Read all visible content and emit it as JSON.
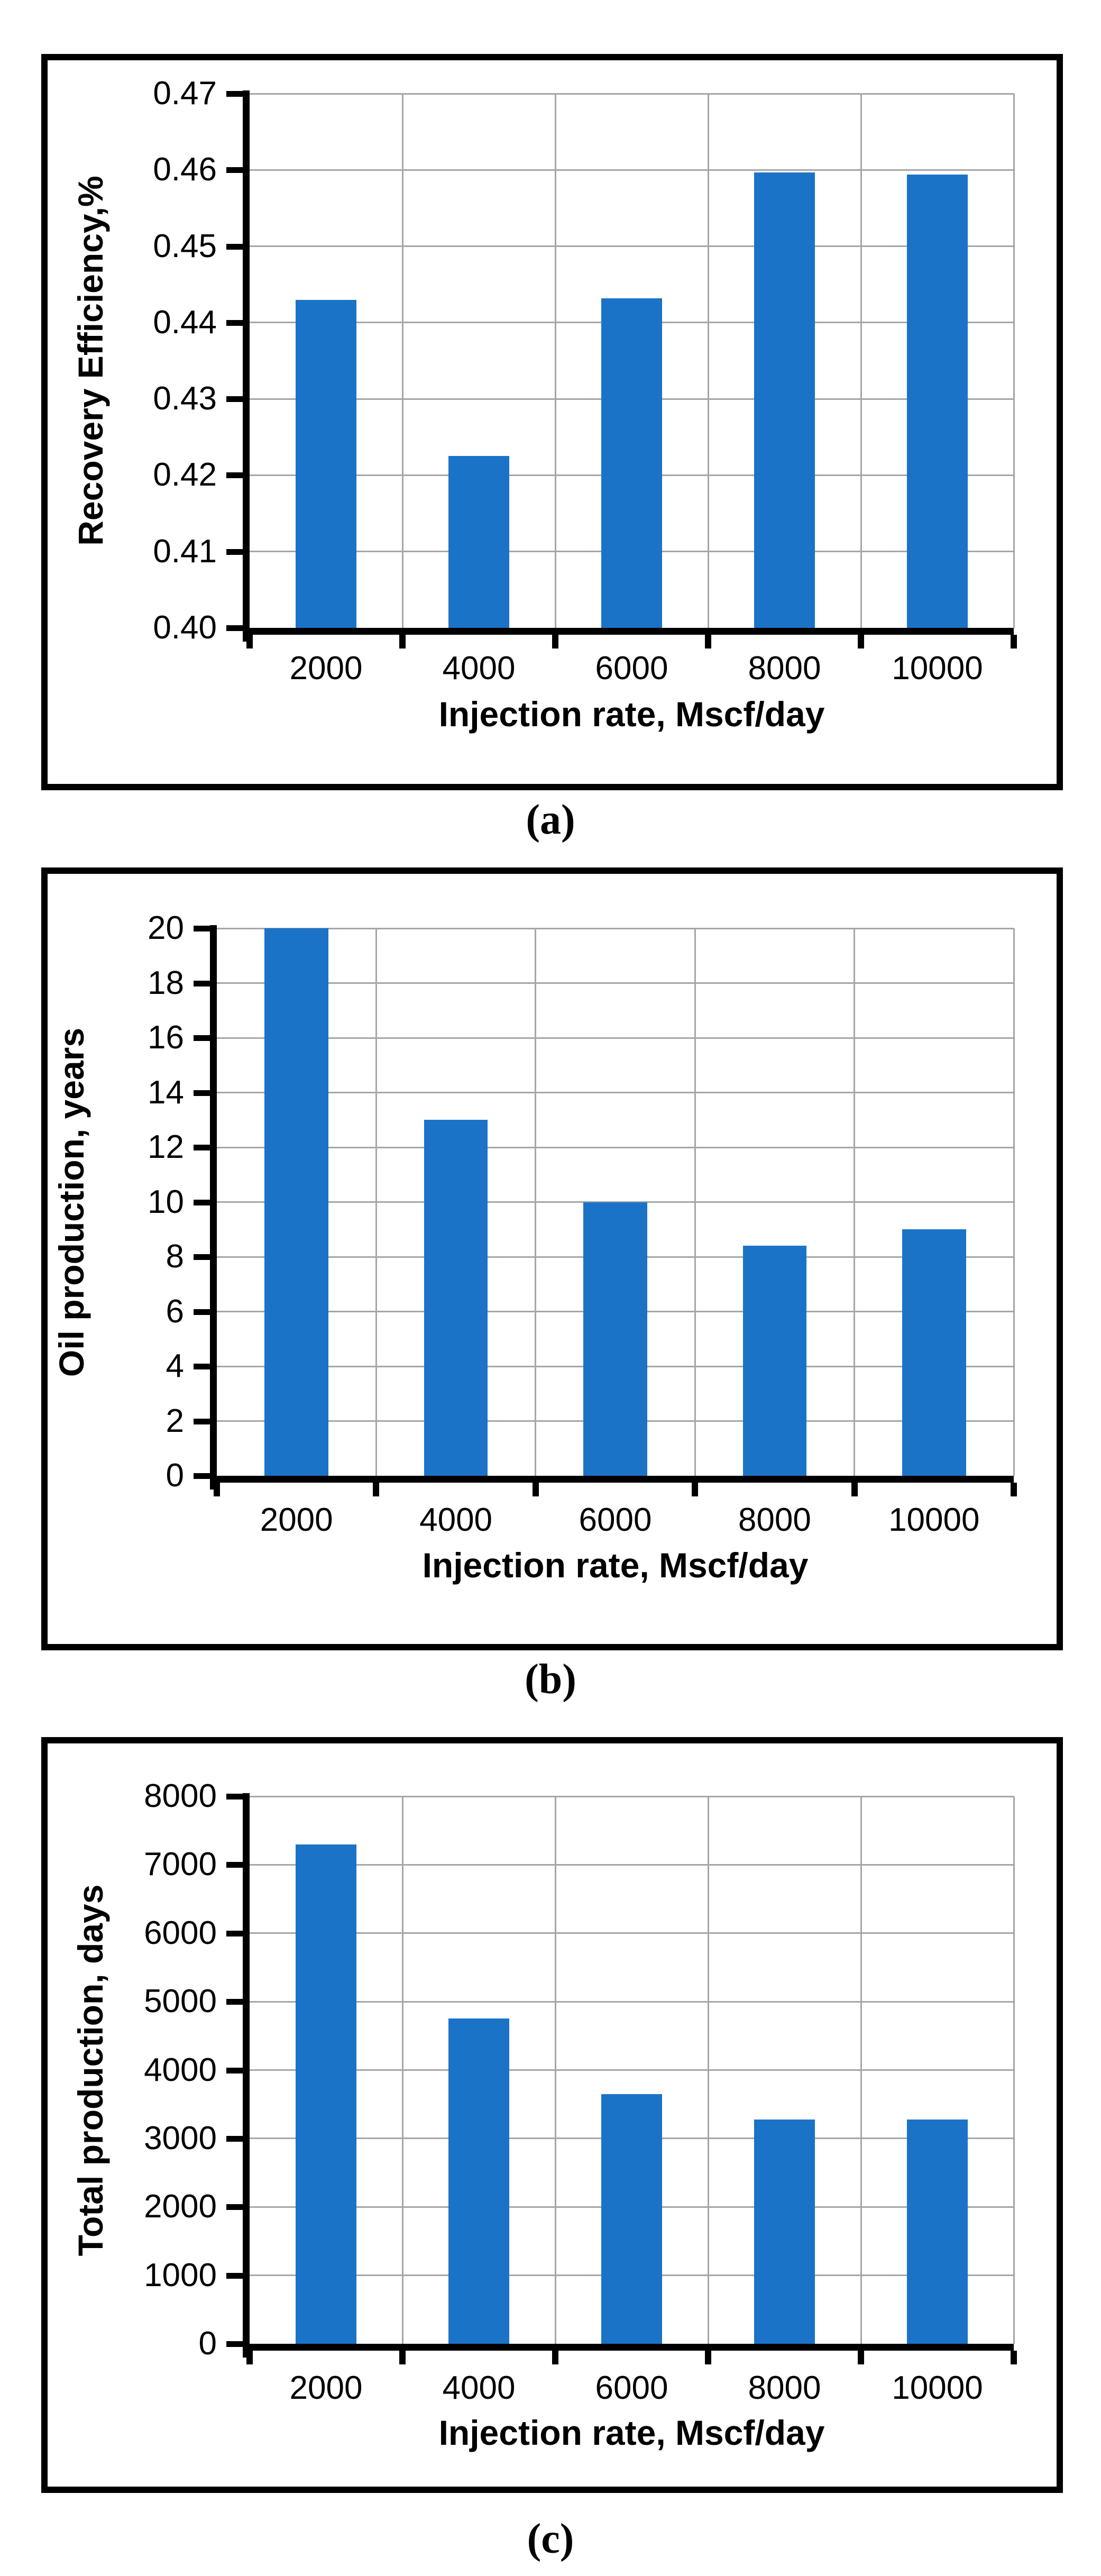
{
  "page": {
    "background": "#FFFFFF"
  },
  "styles": {
    "bar_color": "#1B73C8",
    "grid_color": "#A6A6A6",
    "axis_color": "#000000",
    "border_color": "#000000"
  },
  "captions": [
    "(a)",
    "(b)",
    "(c)"
  ],
  "chart_data": [
    {
      "type": "bar",
      "title": "",
      "categories": [
        "2000",
        "4000",
        "6000",
        "8000",
        "10000"
      ],
      "values": [
        0.443,
        0.4225,
        0.4432,
        0.4597,
        0.4594
      ],
      "xlabel": "Injection rate, Mscf/day",
      "ylabel": "Recovery Efficiency,%",
      "ylim": [
        0.4,
        0.47
      ],
      "ytick_values": [
        0.4,
        0.41,
        0.42,
        0.43,
        0.44,
        0.45,
        0.46,
        0.47
      ],
      "ytick_labels": [
        "0.40",
        "0.41",
        "0.42",
        "0.43",
        "0.44",
        "0.45",
        "0.46",
        "0.47"
      ],
      "grid": true,
      "legend": "none",
      "caption": "(a)"
    },
    {
      "type": "bar",
      "title": "",
      "categories": [
        "2000",
        "4000",
        "6000",
        "8000",
        "10000"
      ],
      "values": [
        20,
        13,
        10,
        8.4,
        9
      ],
      "xlabel": "Injection rate, Mscf/day",
      "ylabel": "Oil production, years",
      "ylim": [
        0,
        20
      ],
      "ytick_values": [
        0,
        2,
        4,
        6,
        8,
        10,
        12,
        14,
        16,
        18,
        20
      ],
      "ytick_labels": [
        "0",
        "2",
        "4",
        "6",
        "8",
        "10",
        "12",
        "14",
        "16",
        "18",
        "20"
      ],
      "grid": true,
      "legend": "none",
      "caption": "(b)"
    },
    {
      "type": "bar",
      "title": "",
      "categories": [
        "2000",
        "4000",
        "6000",
        "8000",
        "10000"
      ],
      "values": [
        7300,
        4750,
        3650,
        3280,
        3280
      ],
      "xlabel": "Injection rate, Mscf/day",
      "ylabel": "Total production, days",
      "ylim": [
        0,
        8000
      ],
      "ytick_values": [
        0,
        1000,
        2000,
        3000,
        4000,
        5000,
        6000,
        7000,
        8000
      ],
      "ytick_labels": [
        "0",
        "1000",
        "2000",
        "3000",
        "4000",
        "5000",
        "6000",
        "7000",
        "8000"
      ],
      "grid": true,
      "legend": "none",
      "caption": "(c)"
    }
  ]
}
